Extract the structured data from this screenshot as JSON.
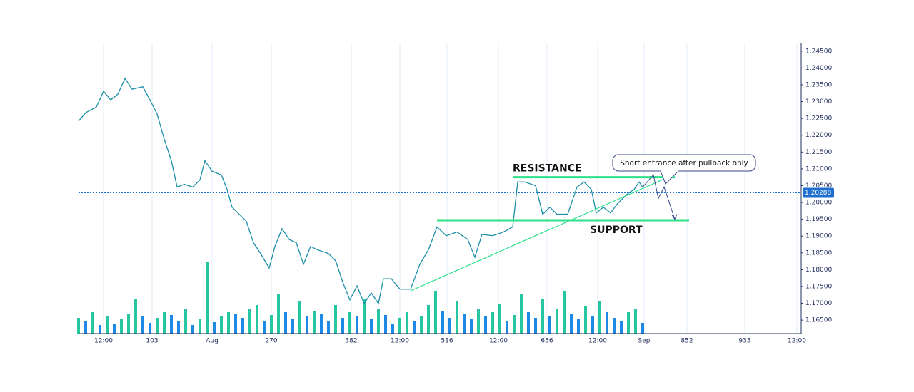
{
  "chart_data": {
    "type": "line",
    "x": [
      0,
      10,
      25,
      35,
      45,
      55,
      65,
      75,
      90,
      100,
      110,
      120,
      130,
      138,
      148,
      160,
      170,
      177,
      187,
      200,
      208,
      215,
      225,
      235,
      245,
      255,
      267,
      275,
      285,
      295,
      305,
      315,
      325,
      335,
      350,
      360,
      370,
      380,
      390,
      400,
      410,
      420,
      427,
      438,
      450,
      465,
      478,
      490,
      502,
      515,
      530,
      545,
      555,
      565,
      580,
      595,
      608,
      615,
      625,
      640,
      650,
      660,
      670,
      685,
      698,
      708,
      718,
      725,
      735,
      745,
      755,
      768,
      778,
      785,
      790
    ],
    "series": [
      {
        "color": "#1a8fa8",
        "values": [
          1.2242,
          1.2267,
          1.2284,
          1.2331,
          1.2305,
          1.2322,
          1.2369,
          1.2337,
          1.2344,
          1.2305,
          1.2263,
          1.2188,
          1.2124,
          1.2046,
          1.2054,
          1.2046,
          1.2067,
          1.2124,
          1.2093,
          1.2082,
          1.2039,
          1.1986,
          1.1965,
          1.1944,
          1.188,
          1.1848,
          1.1805,
          1.1869,
          1.1922,
          1.189,
          1.188,
          1.1816,
          1.1869,
          1.1859,
          1.1848,
          1.1827,
          1.1763,
          1.171,
          1.1752,
          1.1699,
          1.1731,
          1.1699,
          1.1773,
          1.1773,
          1.1742,
          1.1742,
          1.1816,
          1.1859,
          1.1927,
          1.1901,
          1.1912,
          1.189,
          1.1837,
          1.1905,
          1.1901,
          1.1912,
          1.1927,
          1.2061,
          1.2061,
          1.205,
          1.1965,
          1.1986,
          1.1965,
          1.1965,
          1.2046,
          1.2061,
          1.2039,
          1.1969,
          1.1986,
          1.1969,
          1.1997,
          1.2024,
          1.2039,
          1.2061,
          1.2046
        ]
      }
    ],
    "volume": {
      "values": [
        22,
        18,
        30,
        12,
        25,
        14,
        20,
        28,
        48,
        24,
        15,
        22,
        30,
        26,
        18,
        35,
        12,
        20,
        100,
        16,
        24,
        30,
        28,
        22,
        35,
        40,
        18,
        26,
        55,
        30,
        20,
        45,
        24,
        32,
        28,
        18,
        40,
        22,
        30,
        25,
        48,
        20,
        35,
        26,
        14,
        22,
        30,
        18,
        24,
        40,
        60,
        32,
        22,
        45,
        28,
        20,
        35,
        25,
        30,
        42,
        18,
        26,
        55,
        30,
        22,
        48,
        24,
        35,
        60,
        28,
        20,
        38,
        25,
        45,
        30,
        22,
        18,
        30,
        35,
        15
      ],
      "colors": [
        "#26c6a0",
        "#1e88e5"
      ]
    },
    "xlim": [
      0,
      1010
    ],
    "xticks": [
      {
        "value": 35,
        "label": "12:00"
      },
      103,
      {
        "value": 187,
        "label": "Aug"
      },
      270,
      382,
      {
        "value": 450,
        "label": "12:00"
      },
      516,
      {
        "value": 588,
        "label": "12:00"
      },
      656,
      {
        "value": 727,
        "label": "12:00"
      },
      {
        "value": 792,
        "label": "Sep"
      },
      852,
      933,
      {
        "value": 1006,
        "label": "12:00"
      }
    ],
    "ylim": [
      1.161,
      1.2475
    ],
    "yticks": [
      {
        "value": 1.165,
        "label": "1.16500"
      },
      {
        "value": 1.17,
        "label": "1.17000"
      },
      {
        "value": 1.175,
        "label": "1.17500"
      },
      {
        "value": 1.18,
        "label": "1.18000"
      },
      {
        "value": 1.185,
        "label": "1.18500"
      },
      {
        "value": 1.19,
        "label": "1.19000"
      },
      {
        "value": 1.195,
        "label": "1.19500"
      },
      {
        "value": 1.2,
        "label": "1.20000"
      },
      {
        "value": 1.205,
        "label": "1.20500"
      },
      {
        "value": 1.21,
        "label": "1.21000"
      },
      {
        "value": 1.215,
        "label": "1.21500"
      },
      {
        "value": 1.22,
        "label": "1.22000"
      },
      {
        "value": 1.225,
        "label": "1.22500"
      },
      {
        "value": 1.23,
        "label": "1.23000"
      },
      {
        "value": 1.235,
        "label": "1.23500"
      },
      {
        "value": 1.24,
        "label": "1.24000"
      },
      {
        "value": 1.245,
        "label": "1.24500"
      }
    ],
    "grid": true,
    "current_price": 1.20288,
    "levels": [
      {
        "label": "RESISTANCE",
        "value": 1.2075,
        "x": [
          608,
          835
        ],
        "color": "#2ee08a"
      },
      {
        "label": "SUPPORT",
        "value": 1.1947,
        "x": [
          502,
          855
        ],
        "color": "#2ee08a"
      }
    ],
    "trendline": {
      "x": [
        465,
        835
      ],
      "y": [
        1.1737,
        1.2084
      ],
      "color": "#2ee08a"
    },
    "projection": {
      "x": [
        790,
        805,
        812,
        820,
        835
      ],
      "y": [
        1.2046,
        1.2082,
        1.2012,
        1.2046,
        1.195
      ],
      "color": "#3a4a8c"
    },
    "callout": "Short entrance after pullback only"
  }
}
